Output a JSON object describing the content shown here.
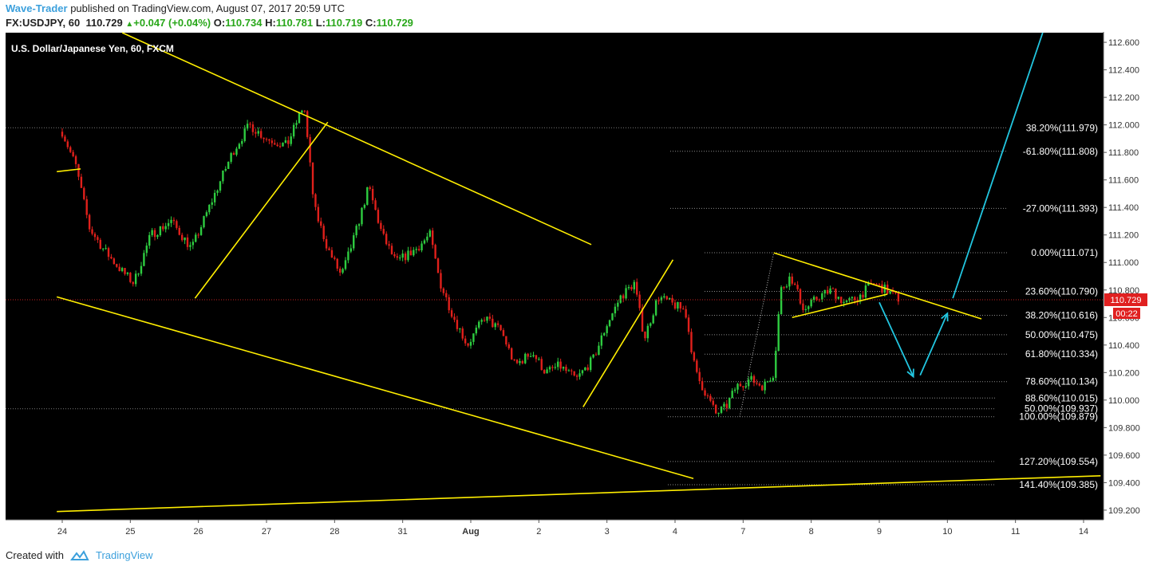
{
  "header": {
    "author": "Wave-Trader",
    "published": "published on TradingView.com, August 07, 2017 20:59 UTC",
    "symbol": "FX:USDJPY, 60",
    "last": "110.729",
    "change": "+0.047 (+0.04%)",
    "o_label": "O:",
    "o": "110.734",
    "h_label": "H:",
    "h": "110.781",
    "l_label": "L:",
    "l": "110.719",
    "c_label": "C:",
    "c": "110.729"
  },
  "footer": {
    "created_with": "Created with",
    "brand": "TradingView"
  },
  "colors": {
    "background": "#000000",
    "up": "#2ecc40",
    "down": "#e0201b",
    "trend": "#ffee00",
    "projection": "#22c6e0",
    "price_tag": "#e02020"
  },
  "chart_data": {
    "type": "candlestick",
    "title": "U.S. Dollar/Japanese Yen, 60, FXCM",
    "x_labels": [
      "24",
      "25",
      "26",
      "27",
      "28",
      "31",
      "Aug",
      "2",
      "3",
      "4",
      "7",
      "8",
      "9",
      "10",
      "11",
      "14"
    ],
    "y_ticks": [
      "112.600",
      "112.400",
      "112.200",
      "112.000",
      "111.800",
      "111.600",
      "111.400",
      "111.200",
      "111.000",
      "110.800",
      "110.600",
      "110.400",
      "110.200",
      "110.000",
      "109.800",
      "109.600",
      "109.400",
      "109.200"
    ],
    "ylim": [
      109.13,
      112.67
    ],
    "last_price": "110.729",
    "countdown": "00:22",
    "fib_levels": [
      {
        "label": "38.20%(111.979)",
        "price": 111.979
      },
      {
        "label": "-61.80%(111.808)",
        "price": 111.808
      },
      {
        "label": "-27.00%(111.393)",
        "price": 111.393
      },
      {
        "label": "0.00%(111.071)",
        "price": 111.071
      },
      {
        "label": "23.60%(110.790)",
        "price": 110.79
      },
      {
        "label": "38.20%(110.616)",
        "price": 110.616
      },
      {
        "label": "50.00%(110.475)",
        "price": 110.475
      },
      {
        "label": "61.80%(110.334)",
        "price": 110.334
      },
      {
        "label": "78.60%(110.134)",
        "price": 110.134
      },
      {
        "label": "88.60%(110.015)",
        "price": 110.015
      },
      {
        "label": "50.00%(109.937)",
        "price": 109.937
      },
      {
        "label": "100.00%(109.879)",
        "price": 109.879
      },
      {
        "label": "127.20%(109.554)",
        "price": 109.554
      },
      {
        "label": "141.40%(109.385)",
        "price": 109.385
      }
    ],
    "close_path": [
      {
        "d": 0.0,
        "p": 111.95
      },
      {
        "d": 0.2,
        "p": 111.7
      },
      {
        "d": 0.4,
        "p": 111.25
      },
      {
        "d": 0.6,
        "p": 111.1
      },
      {
        "d": 0.85,
        "p": 110.95
      },
      {
        "d": 1.05,
        "p": 110.85
      },
      {
        "d": 1.3,
        "p": 111.2
      },
      {
        "d": 1.6,
        "p": 111.3
      },
      {
        "d": 1.9,
        "p": 111.1
      },
      {
        "d": 2.2,
        "p": 111.45
      },
      {
        "d": 2.5,
        "p": 111.8
      },
      {
        "d": 2.75,
        "p": 112.0
      },
      {
        "d": 3.0,
        "p": 111.9
      },
      {
        "d": 3.3,
        "p": 111.85
      },
      {
        "d": 3.55,
        "p": 112.15
      },
      {
        "d": 3.7,
        "p": 111.4
      },
      {
        "d": 3.9,
        "p": 111.1
      },
      {
        "d": 4.1,
        "p": 110.9
      },
      {
        "d": 4.3,
        "p": 111.2
      },
      {
        "d": 4.5,
        "p": 111.55
      },
      {
        "d": 4.7,
        "p": 111.2
      },
      {
        "d": 4.9,
        "p": 111.0
      },
      {
        "d": 5.2,
        "p": 111.1
      },
      {
        "d": 5.4,
        "p": 111.2
      },
      {
        "d": 5.55,
        "p": 110.85
      },
      {
        "d": 5.75,
        "p": 110.6
      },
      {
        "d": 5.95,
        "p": 110.4
      },
      {
        "d": 6.2,
        "p": 110.6
      },
      {
        "d": 6.45,
        "p": 110.5
      },
      {
        "d": 6.65,
        "p": 110.25
      },
      {
        "d": 6.9,
        "p": 110.35
      },
      {
        "d": 7.1,
        "p": 110.2
      },
      {
        "d": 7.3,
        "p": 110.25
      },
      {
        "d": 7.55,
        "p": 110.15
      },
      {
        "d": 7.8,
        "p": 110.3
      },
      {
        "d": 8.0,
        "p": 110.55
      },
      {
        "d": 8.2,
        "p": 110.75
      },
      {
        "d": 8.4,
        "p": 110.85
      },
      {
        "d": 8.55,
        "p": 110.45
      },
      {
        "d": 8.75,
        "p": 110.75
      },
      {
        "d": 8.95,
        "p": 110.7
      },
      {
        "d": 9.15,
        "p": 110.65
      },
      {
        "d": 9.3,
        "p": 110.2
      },
      {
        "d": 9.45,
        "p": 110.05
      },
      {
        "d": 9.6,
        "p": 109.9
      },
      {
        "d": 9.75,
        "p": 109.95
      },
      {
        "d": 9.9,
        "p": 110.1
      },
      {
        "d": 10.1,
        "p": 110.15
      },
      {
        "d": 10.3,
        "p": 110.1
      },
      {
        "d": 10.45,
        "p": 110.2
      },
      {
        "d": 10.55,
        "p": 110.8
      },
      {
        "d": 10.7,
        "p": 110.9
      },
      {
        "d": 10.9,
        "p": 110.65
      },
      {
        "d": 11.1,
        "p": 110.75
      },
      {
        "d": 11.3,
        "p": 110.8
      },
      {
        "d": 11.5,
        "p": 110.7
      },
      {
        "d": 11.7,
        "p": 110.75
      },
      {
        "d": 11.9,
        "p": 110.85
      },
      {
        "d": 12.1,
        "p": 110.8
      },
      {
        "d": 12.3,
        "p": 110.73
      }
    ],
    "trend_lines": [
      {
        "d1": 0.88,
        "p1": 112.67,
        "d2": 7.77,
        "p2": 111.13
      },
      {
        "d1": -0.08,
        "p1": 110.75,
        "d2": 9.27,
        "p2": 109.43
      },
      {
        "d1": -0.08,
        "p1": 109.19,
        "d2": 15.25,
        "p2": 109.45
      },
      {
        "d1": -0.08,
        "p1": 111.66,
        "d2": 0.27,
        "p2": 111.68
      },
      {
        "d1": 1.95,
        "p1": 110.74,
        "d2": 3.9,
        "p2": 112.02
      },
      {
        "d1": 7.65,
        "p1": 109.95,
        "d2": 8.97,
        "p2": 111.02
      },
      {
        "d1": 10.45,
        "p1": 111.07,
        "d2": 13.5,
        "p2": 110.59
      },
      {
        "d1": 10.72,
        "p1": 110.6,
        "d2": 12.12,
        "p2": 110.77
      }
    ],
    "projection_paths": [
      {
        "points": [
          {
            "d": 12.0,
            "p": 110.71
          },
          {
            "d": 12.5,
            "p": 110.17
          }
        ]
      },
      {
        "points": [
          {
            "d": 12.6,
            "p": 110.18
          },
          {
            "d": 13.0,
            "p": 110.63
          }
        ]
      },
      {
        "points": [
          {
            "d": 13.08,
            "p": 110.74
          },
          {
            "d": 14.4,
            "p": 112.67
          }
        ]
      }
    ]
  }
}
